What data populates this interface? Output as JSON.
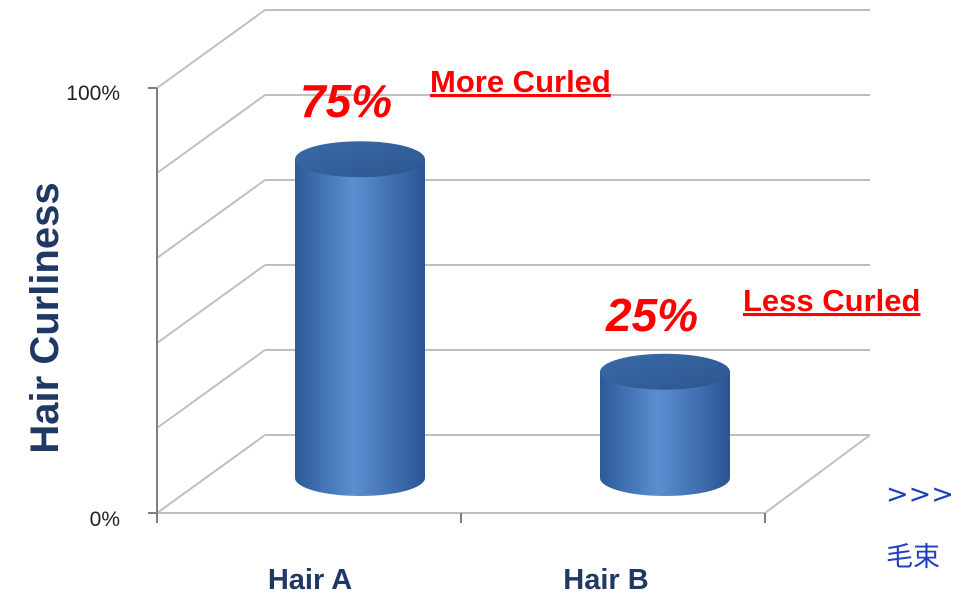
{
  "chart_data": {
    "type": "bar",
    "style": "3d-cylinder",
    "categories": [
      "Hair A",
      "Hair B"
    ],
    "values": [
      75,
      25
    ],
    "ylabel": "Hair Curliness",
    "ylim": [
      0,
      100
    ],
    "yticks": [
      "0%",
      "100%"
    ],
    "grid": true,
    "bar_color": "#4f81bd",
    "annotations": [
      {
        "value_label": "75%",
        "note": "More Curled",
        "color": "#ff0000"
      },
      {
        "value_label": "25%",
        "note": "Less Curled",
        "color": "#ff0000"
      }
    ]
  },
  "footer": {
    "line1": ">>>",
    "line2": "毛束"
  }
}
